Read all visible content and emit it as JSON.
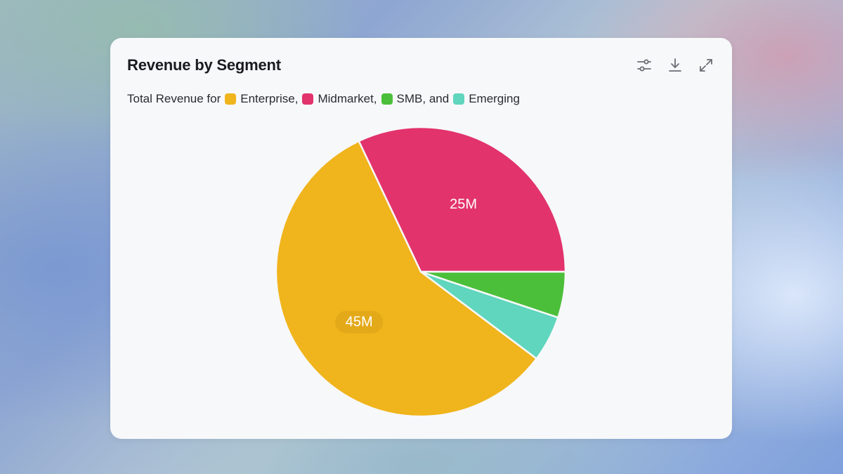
{
  "card": {
    "title": "Revenue by Segment",
    "subtitle_prefix": "Total Revenue for",
    "toolbar": {
      "settings_icon": "sliders-icon",
      "download_icon": "download-icon",
      "expand_icon": "expand-icon"
    }
  },
  "chart_data": {
    "type": "pie",
    "categories": [
      "Enterprise",
      "Midmarket",
      "SMB",
      "Emerging"
    ],
    "legend_labels": [
      "Enterprise,",
      "Midmarket,",
      "SMB, and",
      "Emerging"
    ],
    "values": [
      45,
      25,
      4,
      4
    ],
    "unit": "M",
    "colors": [
      "#f0b41c",
      "#e2336c",
      "#4cbf3a",
      "#5fd6bd"
    ],
    "data_labels": [
      "45M",
      "25M",
      "",
      ""
    ],
    "legend_position": "top-left"
  }
}
